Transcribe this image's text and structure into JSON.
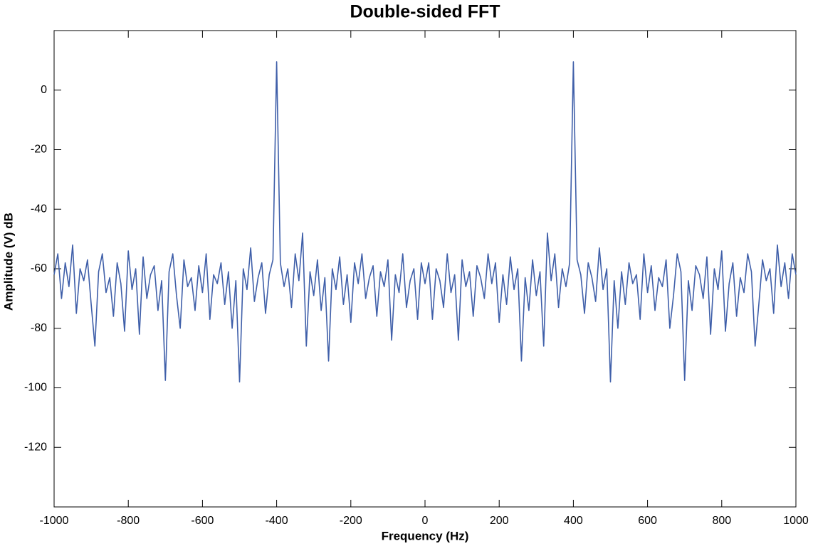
{
  "chart_data": {
    "type": "line",
    "title": "Double-sided FFT",
    "x_label": "Frequency (Hz)",
    "y_label": "Amplitude (V) dB",
    "color": "#3f5fa9",
    "xlim": [
      -1000,
      1000
    ],
    "xticks": [
      -1000,
      -800,
      -600,
      -400,
      -200,
      0,
      200,
      400,
      600,
      800,
      1000
    ],
    "ylim": [
      -140,
      20
    ],
    "yticks": [
      -120,
      -100,
      -80,
      -60,
      -40,
      -20,
      0
    ],
    "x": [
      -1000,
      -990,
      -980,
      -970,
      -960,
      -950,
      -940,
      -930,
      -920,
      -910,
      -900,
      -890,
      -880,
      -870,
      -860,
      -850,
      -840,
      -830,
      -820,
      -810,
      -800,
      -790,
      -780,
      -770,
      -760,
      -750,
      -740,
      -730,
      -720,
      -710,
      -700,
      -690,
      -680,
      -670,
      -660,
      -650,
      -640,
      -630,
      -620,
      -610,
      -600,
      -590,
      -580,
      -570,
      -560,
      -550,
      -540,
      -530,
      -520,
      -510,
      -500,
      -490,
      -480,
      -470,
      -460,
      -450,
      -440,
      -430,
      -420,
      -410,
      -400,
      -390,
      -380,
      -370,
      -360,
      -350,
      -340,
      -330,
      -320,
      -310,
      -300,
      -290,
      -280,
      -270,
      -260,
      -250,
      -240,
      -230,
      -220,
      -210,
      -200,
      -190,
      -180,
      -170,
      -160,
      -150,
      -140,
      -130,
      -120,
      -110,
      -100,
      -90,
      -80,
      -70,
      -60,
      -50,
      -40,
      -30,
      -20,
      -10,
      0,
      10,
      20,
      30,
      40,
      50,
      60,
      70,
      80,
      90,
      100,
      110,
      120,
      130,
      140,
      150,
      160,
      170,
      180,
      190,
      200,
      210,
      220,
      230,
      240,
      250,
      260,
      270,
      280,
      290,
      300,
      310,
      320,
      330,
      340,
      350,
      360,
      370,
      380,
      390,
      400,
      410,
      420,
      430,
      440,
      450,
      460,
      470,
      480,
      490,
      500,
      510,
      520,
      530,
      540,
      550,
      560,
      570,
      580,
      590,
      600,
      610,
      620,
      630,
      640,
      650,
      660,
      670,
      680,
      690,
      700,
      710,
      720,
      730,
      740,
      750,
      760,
      770,
      780,
      790,
      800,
      810,
      820,
      830,
      840,
      850,
      860,
      870,
      880,
      890,
      900,
      910,
      920,
      930,
      940,
      950,
      960,
      970,
      980,
      990,
      1000
    ],
    "values": [
      -62,
      -55,
      -70,
      -58,
      -66,
      -52,
      -75,
      -60,
      -64,
      -57,
      -72,
      -86,
      -61,
      -55,
      -68,
      -63,
      -76,
      -58,
      -65,
      -81,
      -54,
      -67,
      -60,
      -82,
      -56,
      -70,
      -62,
      -59,
      -74,
      -64,
      -97.5,
      -61,
      -55,
      -69,
      -80,
      -57,
      -66,
      -63,
      -74,
      -59,
      -68,
      -55,
      -77,
      -62,
      -65,
      -58,
      -72,
      -61,
      -80,
      -64,
      -98,
      -60,
      -67,
      -53,
      -71,
      -63,
      -58,
      -75,
      -62,
      -57,
      9.5,
      -58,
      -66,
      -60,
      -73,
      -55,
      -64,
      -48,
      -86,
      -61,
      -69,
      -57,
      -74,
      -63,
      -91,
      -60,
      -67,
      -56,
      -72,
      -62,
      -78,
      -58,
      -65,
      -55,
      -70,
      -63,
      -59,
      -76,
      -61,
      -66,
      -57,
      -84,
      -62,
      -68,
      -55,
      -73,
      -64,
      -60,
      -77,
      -58,
      -65,
      -58,
      -77,
      -60,
      -64,
      -73,
      -55,
      -68,
      -62,
      -84,
      -57,
      -66,
      -61,
      -76,
      -59,
      -63,
      -70,
      -55,
      -65,
      -58,
      -78,
      -62,
      -72,
      -56,
      -67,
      -60,
      -91,
      -63,
      -74,
      -57,
      -69,
      -61,
      -86,
      -48,
      -64,
      -55,
      -73,
      -60,
      -66,
      -58,
      9.5,
      -57,
      -62,
      -75,
      -58,
      -63,
      -71,
      -53,
      -67,
      -60,
      -98,
      -64,
      -80,
      -61,
      -72,
      -58,
      -65,
      -62,
      -77,
      -55,
      -68,
      -59,
      -74,
      -63,
      -66,
      -57,
      -80,
      -69,
      -55,
      -61,
      -97.5,
      -64,
      -74,
      -59,
      -62,
      -70,
      -56,
      -82,
      -60,
      -67,
      -54,
      -81,
      -65,
      -58,
      -76,
      -63,
      -68,
      -55,
      -61,
      -86,
      -72,
      -57,
      -64,
      -60,
      -75,
      -52,
      -66,
      -58,
      -70,
      -55,
      -62
    ]
  }
}
